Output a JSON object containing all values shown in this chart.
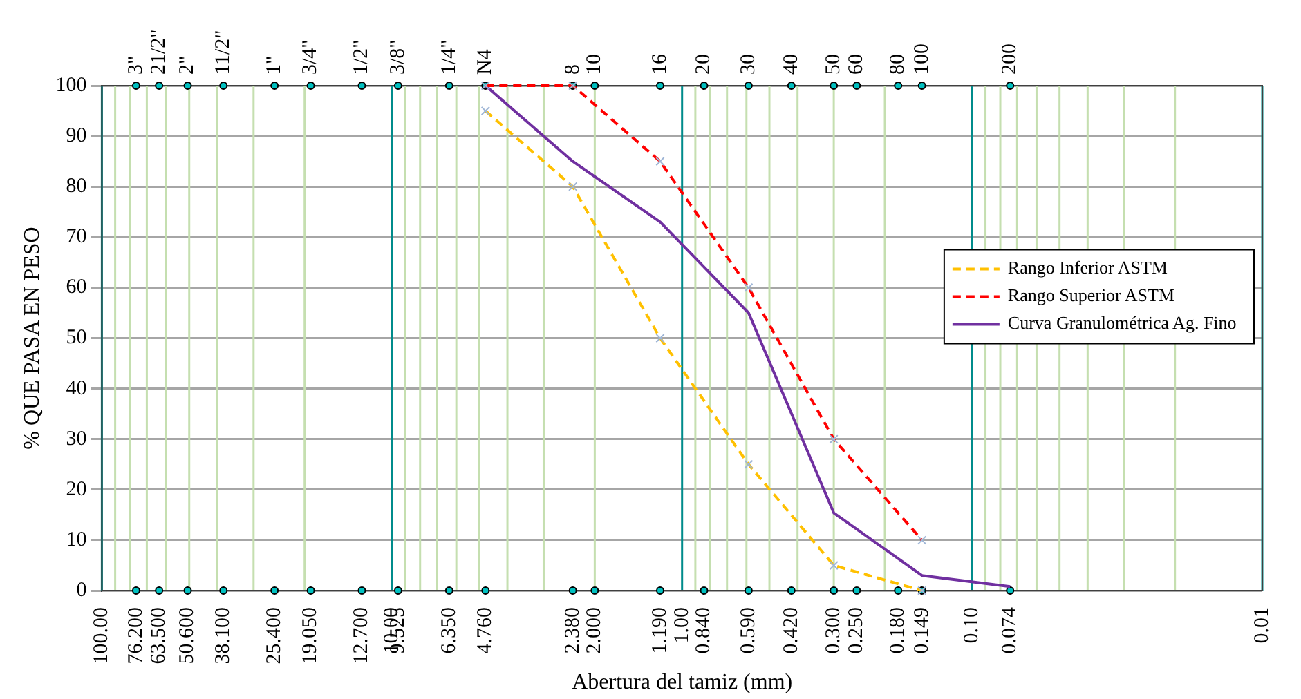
{
  "chart_data": {
    "type": "line",
    "xlabel": "Abertura del tamiz (mm)",
    "ylabel": "% QUE PASA EN PESO",
    "log": "x",
    "grid": true,
    "legend": "right",
    "xlim": [
      100,
      0.01
    ],
    "xticks": [
      {
        "value": 100,
        "label": "100.00"
      },
      {
        "value": 76.2,
        "label": "76.200"
      },
      {
        "value": 63.5,
        "label": "63.500"
      },
      {
        "value": 50.6,
        "label": "50.600"
      },
      {
        "value": 38.1,
        "label": "38.100"
      },
      {
        "value": 25.4,
        "label": "25.400"
      },
      {
        "value": 19.05,
        "label": "19.050"
      },
      {
        "value": 12.7,
        "label": "12.700"
      },
      {
        "value": 10,
        "label": "10.00"
      },
      {
        "value": 9.525,
        "label": "9.525"
      },
      {
        "value": 6.35,
        "label": "6.350"
      },
      {
        "value": 4.76,
        "label": "4.760"
      },
      {
        "value": 2.38,
        "label": "2.380"
      },
      {
        "value": 2,
        "label": "2.000"
      },
      {
        "value": 1.19,
        "label": "1.190"
      },
      {
        "value": 1,
        "label": "1.00"
      },
      {
        "value": 0.84,
        "label": "0.840"
      },
      {
        "value": 0.59,
        "label": "0.590"
      },
      {
        "value": 0.42,
        "label": "0.420"
      },
      {
        "value": 0.3,
        "label": "0.300"
      },
      {
        "value": 0.25,
        "label": "0.250"
      },
      {
        "value": 0.18,
        "label": "0.180"
      },
      {
        "value": 0.149,
        "label": "0.149"
      },
      {
        "value": 0.1,
        "label": "0.10"
      },
      {
        "value": 0.074,
        "label": "0.074"
      },
      {
        "value": 0.01,
        "label": "0.01"
      }
    ],
    "annotations": [
      {
        "x": 76.2,
        "y": 100,
        "text": "3\""
      },
      {
        "x": 63.5,
        "y": 100,
        "text": "21/2\""
      },
      {
        "x": 50.6,
        "y": 100,
        "text": "2\""
      },
      {
        "x": 38.1,
        "y": 100,
        "text": "11/2\""
      },
      {
        "x": 25.4,
        "y": 100,
        "text": "1\""
      },
      {
        "x": 19.05,
        "y": 100,
        "text": "3/4\""
      },
      {
        "x": 12.7,
        "y": 100,
        "text": "1/2\""
      },
      {
        "x": 9.525,
        "y": 100,
        "text": "3/8\""
      },
      {
        "x": 6.35,
        "y": 100,
        "text": "1/4\""
      },
      {
        "x": 4.76,
        "y": 100,
        "text": "N4"
      },
      {
        "x": 2.38,
        "y": 100,
        "text": "8"
      },
      {
        "x": 2,
        "y": 100,
        "text": "10"
      },
      {
        "x": 1.19,
        "y": 100,
        "text": "16"
      },
      {
        "x": 0.84,
        "y": 100,
        "text": "20"
      },
      {
        "x": 0.59,
        "y": 100,
        "text": "30"
      },
      {
        "x": 0.42,
        "y": 100,
        "text": "40"
      },
      {
        "x": 0.3,
        "y": 100,
        "text": "50"
      },
      {
        "x": 0.25,
        "y": 100,
        "text": "60"
      },
      {
        "x": 0.18,
        "y": 100,
        "text": "80"
      },
      {
        "x": 0.149,
        "y": 100,
        "text": "100"
      },
      {
        "x": 0.074,
        "y": 100,
        "text": "200"
      }
    ],
    "ylim": [
      0,
      100
    ],
    "yticks": [
      0,
      10,
      20,
      30,
      40,
      50,
      60,
      70,
      80,
      90,
      100
    ],
    "series": [
      {
        "name": "Rango Inferior ASTM",
        "color": "#ffc000",
        "line_style": "dashed",
        "marker": "cross",
        "x": [
          4.76,
          2.38,
          1.19,
          0.59,
          0.3,
          0.149
        ],
        "values": [
          95,
          80,
          50,
          25,
          5,
          0
        ]
      },
      {
        "name": "Rango Superior ASTM",
        "color": "#ff0000",
        "line_style": "dashed",
        "marker": "cross",
        "x": [
          4.76,
          2.38,
          1.19,
          0.59,
          0.3,
          0.149
        ],
        "values": [
          100,
          100,
          85,
          60,
          30,
          10
        ]
      },
      {
        "type": "scatter",
        "color": "#00c0c0",
        "marker": "circle",
        "x": [
          76.2,
          63.5,
          50.6,
          38.1,
          25.4,
          19.05,
          12.7,
          9.525,
          6.35,
          4.76,
          2.38,
          2,
          1.19,
          0.84,
          0.59,
          0.42,
          0.3,
          0.25,
          0.18,
          0.149,
          0.074
        ],
        "values": [
          100,
          100,
          100,
          100,
          100,
          100,
          100,
          100,
          100,
          100,
          100,
          100,
          100,
          100,
          100,
          100,
          100,
          100,
          100,
          100,
          100
        ]
      },
      {
        "type": "scatter",
        "color": "#00c0c0",
        "marker": "circle",
        "x": [
          76.2,
          63.5,
          50.6,
          38.1,
          25.4,
          19.05,
          12.7,
          9.525,
          6.35,
          4.76,
          2.38,
          2,
          1.19,
          0.84,
          0.59,
          0.42,
          0.3,
          0.25,
          0.18,
          0.149,
          0.074
        ],
        "values": [
          0,
          0,
          0,
          0,
          0,
          0,
          0,
          0,
          0,
          0,
          0,
          0,
          0,
          0,
          0,
          0,
          0,
          0,
          0,
          0,
          0
        ]
      },
      {
        "name": "Curva Granulométrica Ag. Fino",
        "color": "#7030a0",
        "line_style": "solid",
        "marker": "none",
        "x": [
          4.76,
          2.38,
          1.19,
          0.59,
          0.3,
          0.149,
          0.074
        ],
        "values": [
          100,
          85,
          73,
          55,
          15.4,
          3,
          0.8
        ]
      }
    ]
  }
}
